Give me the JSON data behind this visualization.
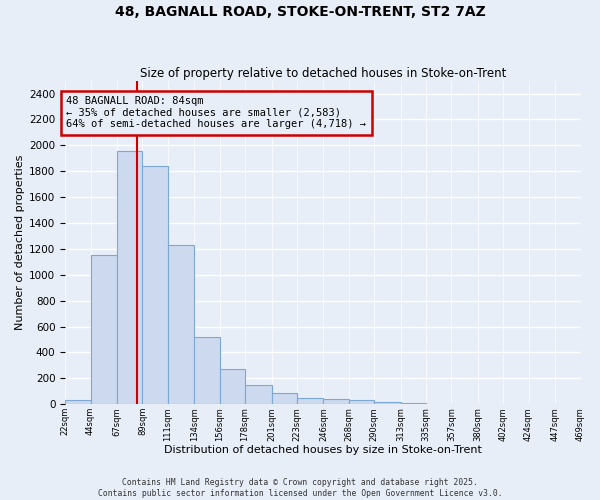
{
  "title": "48, BAGNALL ROAD, STOKE-ON-TRENT, ST2 7AZ",
  "subtitle": "Size of property relative to detached houses in Stoke-on-Trent",
  "xlabel": "Distribution of detached houses by size in Stoke-on-Trent",
  "ylabel": "Number of detached properties",
  "bar_color": "#ccd9ee",
  "bar_edge_color": "#7da8d4",
  "vline_color": "#cc0000",
  "vline_x": 84,
  "annotation_text": "48 BAGNALL ROAD: 84sqm\n← 35% of detached houses are smaller (2,583)\n64% of semi-detached houses are larger (4,718) →",
  "annotation_box_color": "#cc0000",
  "background_color": "#e8eef8",
  "grid_color": "#ffffff",
  "footer_line1": "Contains HM Land Registry data © Crown copyright and database right 2025.",
  "footer_line2": "Contains public sector information licensed under the Open Government Licence v3.0.",
  "bin_edges": [
    22,
    44,
    67,
    89,
    111,
    134,
    156,
    178,
    201,
    223,
    246,
    268,
    290,
    313,
    335,
    357,
    380,
    402,
    424,
    447,
    469
  ],
  "bin_labels": [
    "22sqm",
    "44sqm",
    "67sqm",
    "89sqm",
    "111sqm",
    "134sqm",
    "156sqm",
    "178sqm",
    "201sqm",
    "223sqm",
    "246sqm",
    "268sqm",
    "290sqm",
    "313sqm",
    "335sqm",
    "357sqm",
    "380sqm",
    "402sqm",
    "424sqm",
    "447sqm",
    "469sqm"
  ],
  "counts": [
    30,
    1150,
    1960,
    1840,
    1230,
    520,
    275,
    150,
    90,
    50,
    40,
    35,
    15,
    8,
    4,
    2,
    1,
    1,
    0,
    0
  ],
  "ylim": [
    0,
    2500
  ],
  "yticks": [
    0,
    200,
    400,
    600,
    800,
    1000,
    1200,
    1400,
    1600,
    1800,
    2000,
    2200,
    2400
  ]
}
